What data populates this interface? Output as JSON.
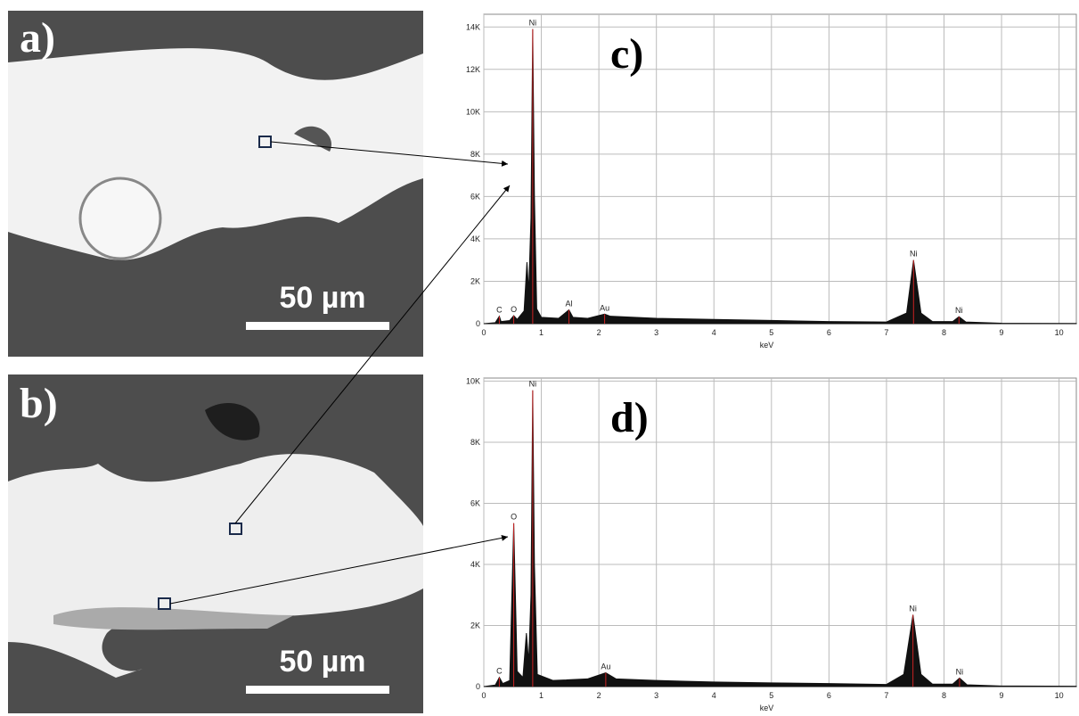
{
  "panels": [
    {
      "label": "a)",
      "scale_bar": "50 µm"
    },
    {
      "label": "b)",
      "scale_bar": "50 µm"
    }
  ],
  "chart_data": [
    {
      "type": "area",
      "panel_label": "c)",
      "x_label": "keV",
      "color": "#111111",
      "peak_color": "#cc2222",
      "grid": true,
      "x": [
        0,
        0.2,
        0.27,
        0.3,
        0.45,
        0.52,
        0.58,
        0.7,
        0.75,
        0.78,
        0.82,
        0.85,
        0.88,
        0.92,
        1.0,
        1.3,
        1.48,
        1.55,
        1.8,
        2.1,
        2.2,
        3,
        4,
        5,
        6,
        7,
        7.35,
        7.47,
        7.6,
        7.8,
        8.15,
        8.26,
        8.38,
        9,
        10.3
      ],
      "values": [
        0,
        50,
        350,
        100,
        150,
        380,
        200,
        600,
        2900,
        1500,
        5000,
        13900,
        6000,
        700,
        300,
        250,
        650,
        300,
        250,
        450,
        350,
        250,
        200,
        150,
        100,
        80,
        500,
        3000,
        500,
        100,
        100,
        330,
        80,
        20,
        10
      ],
      "annotations": [
        {
          "text": "C",
          "x": 0.27,
          "y": 350
        },
        {
          "text": "O",
          "x": 0.52,
          "y": 380
        },
        {
          "text": "Ni",
          "x": 0.85,
          "y": 13900
        },
        {
          "text": "Al",
          "x": 1.48,
          "y": 650
        },
        {
          "text": "Au",
          "x": 2.1,
          "y": 450
        },
        {
          "text": "Ni",
          "x": 7.47,
          "y": 3000
        },
        {
          "text": "Ni",
          "x": 8.26,
          "y": 330
        }
      ],
      "xlim": [
        0,
        10.3
      ],
      "xticks": [
        0,
        1,
        2,
        3,
        4,
        5,
        6,
        7,
        8,
        9,
        10
      ],
      "ylim": [
        0,
        14600
      ],
      "yticks": [
        0,
        {
          "value": 2000,
          "label": "2K"
        },
        {
          "value": 4000,
          "label": "4K"
        },
        {
          "value": 6000,
          "label": "6K"
        },
        {
          "value": 8000,
          "label": "8K"
        },
        {
          "value": 10000,
          "label": "10K"
        },
        {
          "value": 12000,
          "label": "12K"
        },
        {
          "value": 14000,
          "label": "14K"
        }
      ]
    },
    {
      "type": "area",
      "panel_label": "d)",
      "x_label": "keV",
      "color": "#111111",
      "peak_color": "#cc2222",
      "grid": true,
      "x": [
        0,
        0.2,
        0.27,
        0.33,
        0.45,
        0.52,
        0.58,
        0.68,
        0.74,
        0.78,
        0.82,
        0.85,
        0.88,
        0.93,
        1.2,
        1.8,
        2.12,
        2.3,
        3,
        4,
        5,
        6,
        7,
        7.3,
        7.46,
        7.6,
        7.8,
        8.15,
        8.27,
        8.4,
        9,
        10.3
      ],
      "values": [
        0,
        50,
        300,
        100,
        200,
        5350,
        500,
        300,
        1750,
        800,
        3000,
        9700,
        4000,
        400,
        200,
        250,
        450,
        250,
        200,
        150,
        120,
        100,
        70,
        400,
        2350,
        400,
        80,
        80,
        280,
        60,
        20,
        10
      ],
      "annotations": [
        {
          "text": "C",
          "x": 0.27,
          "y": 300
        },
        {
          "text": "O",
          "x": 0.52,
          "y": 5350
        },
        {
          "text": "Ni",
          "x": 0.85,
          "y": 9700
        },
        {
          "text": "Au",
          "x": 2.12,
          "y": 450
        },
        {
          "text": "Ni",
          "x": 7.46,
          "y": 2350
        },
        {
          "text": "Ni",
          "x": 8.27,
          "y": 280
        }
      ],
      "xlim": [
        0,
        10.3
      ],
      "xticks": [
        0,
        1,
        2,
        3,
        4,
        5,
        6,
        7,
        8,
        9,
        10
      ],
      "ylim": [
        0,
        10100
      ],
      "yticks": [
        0,
        {
          "value": 2000,
          "label": "2K"
        },
        {
          "value": 4000,
          "label": "4K"
        },
        {
          "value": 6000,
          "label": "6K"
        },
        {
          "value": 8000,
          "label": "8K"
        },
        {
          "value": 10000,
          "label": "10K"
        }
      ]
    }
  ]
}
